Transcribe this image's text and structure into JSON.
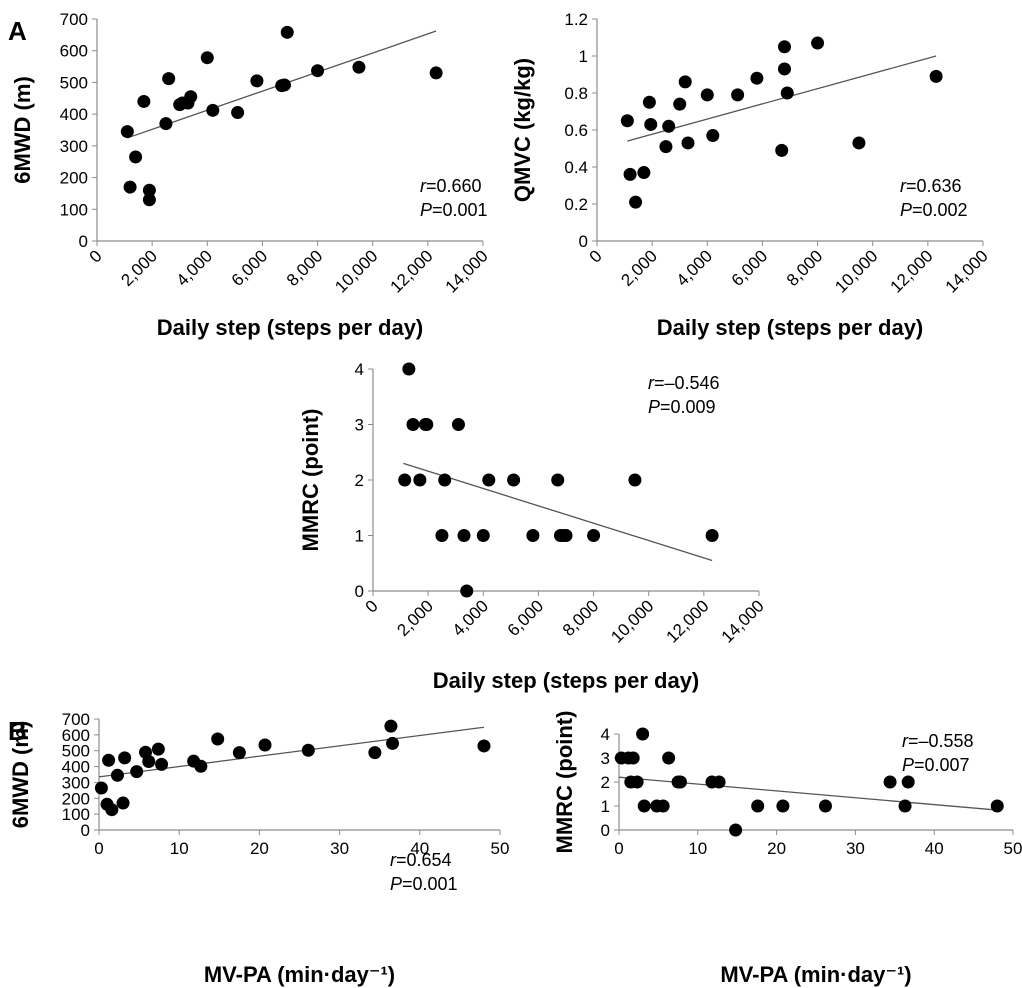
{
  "figure": {
    "panel_labels": [
      "A",
      "B"
    ]
  },
  "chart_data": [
    {
      "type": "scatter",
      "panel": "A",
      "xlabel": "Daily step (steps per day)",
      "ylabel": "6MWD (m)",
      "xlim": [
        0,
        14000
      ],
      "ylim": [
        0,
        700
      ],
      "xticks": [
        "0",
        "2,000",
        "4,000",
        "6,000",
        "8,000",
        "10,000",
        "12,000",
        "14,000"
      ],
      "yticks": [
        "0",
        "100",
        "200",
        "300",
        "400",
        "500",
        "600",
        "700"
      ],
      "grid": false,
      "annotation": {
        "r_label": "r",
        "r_value": "=0.660",
        "p_label": "P",
        "p_value": "=0.001"
      },
      "trendline": {
        "x": [
          1100,
          12300
        ],
        "y": [
          325,
          662
        ]
      },
      "points": {
        "x": [
          1100,
          1200,
          1400,
          1700,
          1900,
          1900,
          2500,
          2600,
          3000,
          3100,
          3300,
          3400,
          4000,
          4200,
          5100,
          5800,
          6700,
          6800,
          6900,
          8000,
          9500,
          12300
        ],
        "y": [
          345,
          170,
          265,
          440,
          160,
          130,
          370,
          512,
          430,
          435,
          435,
          455,
          578,
          412,
          405,
          505,
          490,
          492,
          658,
          537,
          548,
          530
        ]
      }
    },
    {
      "type": "scatter",
      "panel": "A",
      "xlabel": "Daily step (steps per day)",
      "ylabel": "QMVC (kg/kg)",
      "xlim": [
        0,
        14000
      ],
      "ylim": [
        0,
        1.2
      ],
      "xticks": [
        "0",
        "2,000",
        "4,000",
        "6,000",
        "8,000",
        "10,000",
        "12,000",
        "14,000"
      ],
      "yticks": [
        "0",
        "0.2",
        "0.4",
        "0.6",
        "0.8",
        "1",
        "1.2"
      ],
      "grid": false,
      "annotation": {
        "r_label": "r",
        "r_value": "=0.636",
        "p_label": "P",
        "p_value": "=0.002"
      },
      "trendline": {
        "x": [
          1100,
          12300
        ],
        "y": [
          0.54,
          1.0
        ]
      },
      "points": {
        "x": [
          1100,
          1200,
          1400,
          1700,
          1900,
          1950,
          2500,
          2600,
          3000,
          3200,
          3300,
          4000,
          4200,
          5100,
          5800,
          6700,
          6800,
          6800,
          6900,
          8000,
          9500,
          12300
        ],
        "y": [
          0.65,
          0.36,
          0.21,
          0.37,
          0.75,
          0.63,
          0.51,
          0.62,
          0.74,
          0.86,
          0.53,
          0.79,
          0.57,
          0.79,
          0.88,
          0.49,
          1.05,
          0.93,
          0.8,
          1.07,
          0.53,
          0.89
        ]
      }
    },
    {
      "type": "scatter",
      "panel": "A",
      "xlabel": "Daily step (steps per day)",
      "ylabel": "MMRC (point)",
      "xlim": [
        0,
        14000
      ],
      "ylim": [
        0,
        4
      ],
      "xticks": [
        "0",
        "2,000",
        "4,000",
        "6,000",
        "8,000",
        "10,000",
        "12,000",
        "14,000"
      ],
      "yticks": [
        "0",
        "1",
        "2",
        "3",
        "4"
      ],
      "grid": false,
      "annotation": {
        "r_label": "r",
        "r_value": "=–0.546",
        "p_label": "P",
        "p_value": "=0.009"
      },
      "trendline": {
        "x": [
          1100,
          12300
        ],
        "y": [
          2.3,
          0.55
        ]
      },
      "points": {
        "x": [
          1150,
          1300,
          1450,
          1700,
          1900,
          1950,
          2500,
          2600,
          3100,
          3300,
          3400,
          4000,
          4200,
          5100,
          5800,
          6700,
          6800,
          6900,
          7000,
          8000,
          9500,
          12300
        ],
        "y": [
          2,
          4,
          3,
          2,
          3,
          3,
          1,
          2,
          3,
          1,
          0,
          1,
          2,
          2,
          1,
          2,
          1,
          1,
          1,
          1,
          2,
          1
        ]
      }
    },
    {
      "type": "scatter",
      "panel": "B",
      "xlabel": "MV-PA (min·day⁻¹)",
      "ylabel": "6MWD (m)",
      "xlim": [
        0,
        50
      ],
      "ylim": [
        0,
        700
      ],
      "xticks": [
        "0",
        "10",
        "20",
        "30",
        "40",
        "50"
      ],
      "yticks": [
        "0",
        "100",
        "200",
        "300",
        "400",
        "500",
        "600",
        "700"
      ],
      "grid": false,
      "annotation": {
        "r_label": "r",
        "r_value": "=0.654",
        "p_label": "P",
        "p_value": "=0.001"
      },
      "trendline": {
        "x": [
          0,
          48
        ],
        "y": [
          335,
          648
        ]
      },
      "points": {
        "x": [
          0.3,
          1.0,
          1.2,
          1.6,
          2.3,
          3.0,
          3.2,
          4.7,
          5.8,
          6.2,
          7.4,
          7.8,
          11.8,
          12.7,
          14.8,
          17.5,
          20.7,
          26.1,
          34.4,
          36.4,
          36.6,
          48.0
        ],
        "y": [
          265,
          162,
          440,
          128,
          345,
          170,
          455,
          368,
          490,
          432,
          510,
          414,
          434,
          402,
          574,
          488,
          536,
          503,
          488,
          655,
          546,
          530
        ]
      }
    },
    {
      "type": "scatter",
      "panel": "B",
      "xlabel": "MV-PA (min·day⁻¹)",
      "ylabel": "MMRC (point)",
      "xlim": [
        0,
        50
      ],
      "ylim": [
        0,
        4
      ],
      "xticks": [
        "0",
        "10",
        "20",
        "30",
        "40",
        "50"
      ],
      "yticks": [
        "0",
        "1",
        "2",
        "3",
        "4"
      ],
      "grid": false,
      "annotation": {
        "r_label": "r",
        "r_value": "=–0.558",
        "p_label": "P",
        "p_value": "=0.007"
      },
      "trendline": {
        "x": [
          0,
          48
        ],
        "y": [
          2.2,
          0.83
        ]
      },
      "points": {
        "x": [
          0.3,
          1.2,
          1.5,
          1.8,
          2.3,
          3.0,
          3.2,
          4.8,
          5.6,
          6.3,
          7.5,
          7.8,
          11.8,
          12.7,
          14.8,
          17.6,
          20.8,
          26.2,
          34.4,
          36.3,
          36.7,
          48.0
        ],
        "y": [
          3,
          3,
          2,
          3,
          2,
          4,
          1,
          1,
          1,
          3,
          2,
          2,
          2,
          2,
          0,
          1,
          1,
          1,
          2,
          1,
          2,
          1
        ]
      }
    }
  ]
}
